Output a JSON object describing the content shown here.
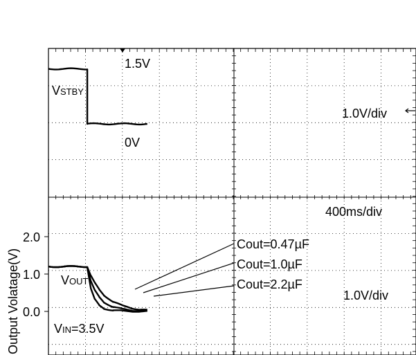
{
  "chart_data": [
    {
      "type": "line",
      "panel": "top",
      "ylabel": "",
      "xlabel": "",
      "x_unit": "s",
      "series": [
        {
          "name": "VSTBY",
          "x": [
            0,
            0.42,
            0.4201,
            1.07
          ],
          "y": [
            1.5,
            1.5,
            0,
            0
          ]
        }
      ],
      "annotations": {
        "signal_name": "VSTBY",
        "level_high": "1.5V",
        "level_low": "0V",
        "vscale": "1.0V/div"
      },
      "grid": true,
      "color": "#000000"
    },
    {
      "type": "line",
      "panel": "bottom",
      "ylabel": "Output Volatage(V)",
      "xlabel": "",
      "x_unit": "s",
      "yticks": [
        "2.0",
        "1.0",
        "0.0"
      ],
      "series": [
        {
          "name": "Cout=0.47µF",
          "x": [
            0,
            0.42,
            0.46,
            0.5,
            0.55,
            0.6,
            0.7,
            0.8,
            1.07
          ],
          "y": [
            1.2,
            1.2,
            0.6,
            0.32,
            0.16,
            0.08,
            0.03,
            0.01,
            0.0
          ]
        },
        {
          "name": "Cout=1.0µF",
          "x": [
            0,
            0.42,
            0.46,
            0.5,
            0.55,
            0.6,
            0.7,
            0.8,
            0.9,
            1.07
          ],
          "y": [
            1.2,
            1.2,
            0.8,
            0.56,
            0.38,
            0.25,
            0.12,
            0.06,
            0.03,
            0.01
          ]
        },
        {
          "name": "Cout=2.2µF",
          "x": [
            0,
            0.42,
            0.46,
            0.5,
            0.55,
            0.6,
            0.7,
            0.8,
            0.9,
            1.0,
            1.07
          ],
          "y": [
            1.2,
            1.2,
            0.95,
            0.76,
            0.58,
            0.44,
            0.26,
            0.15,
            0.09,
            0.05,
            0.03
          ]
        }
      ],
      "annotations": {
        "signal_name": "VOUT",
        "vin": "VIN=3.5V",
        "hscale": "400ms/div",
        "vscale": "1.0V/div"
      },
      "grid": true,
      "color": "#000000"
    }
  ],
  "text": {
    "top_sig_main": "V",
    "top_sig_sub": "STBY",
    "top_high": "1.5V",
    "top_low": "0V",
    "top_vdiv": "1.0V/div",
    "bot_sig_main": "V",
    "bot_sig_sub": "OUT",
    "bot_vin_main": "V",
    "bot_vin_sub": "IN",
    "bot_vin_val": "=3.5V",
    "hdiv": "400ms/div",
    "bot_vdiv": "1.0V/div",
    "ylabel": "Output Volatage(V)",
    "ytick_2": "2.0",
    "ytick_1": "1.0",
    "ytick_0": "0.0",
    "legend_047": "Cout=0.47µF",
    "legend_10": "Cout=1.0µF",
    "legend_22": "Cout=2.2µF"
  }
}
